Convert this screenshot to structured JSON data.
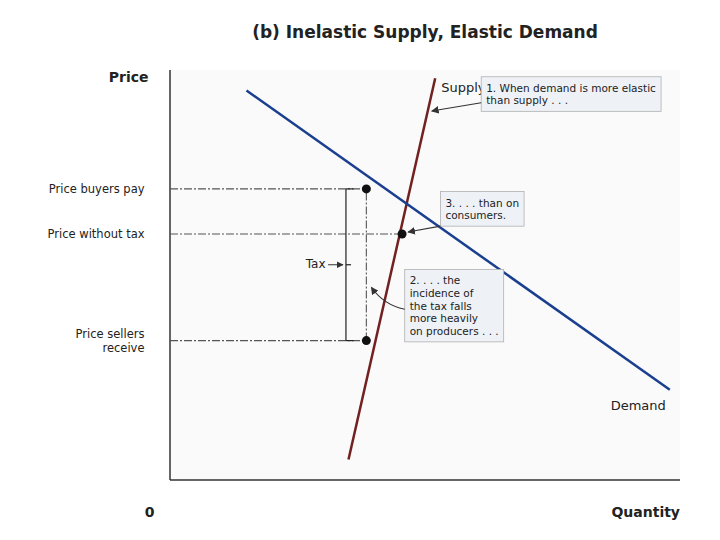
{
  "chart_data": {
    "type": "line",
    "title": "(b) Inelastic Supply, Elastic Demand",
    "x_label": "Quantity",
    "y_label": "Price",
    "origin_label": "0",
    "xlim": [
      0,
      10
    ],
    "ylim": [
      0,
      10
    ],
    "tick_labels": false,
    "series": [
      {
        "name": "Supply",
        "color": "#722020",
        "x": [
          3.5,
          5.2
        ],
        "values": [
          0.5,
          9.8
        ]
      },
      {
        "name": "Demand",
        "color": "#1a3f8f",
        "x": [
          1.5,
          9.8
        ],
        "values": [
          9.5,
          2.2
        ]
      }
    ],
    "price_levels": [
      {
        "label": "Price buyers pay",
        "value": 7.1,
        "x": 3.85
      },
      {
        "label": "Price without tax",
        "value": 6.0,
        "x": 4.55
      },
      {
        "label": "Price sellers\nreceive",
        "value": 3.4,
        "x": 3.85
      }
    ],
    "tax_label": "Tax",
    "annotations": [
      "1. When demand is more elastic\nthan supply . . .",
      "2. . . . the\nincidence of\nthe tax falls\nmore heavily\non producers . . .",
      "3. . . . than on\nconsumers."
    ]
  }
}
